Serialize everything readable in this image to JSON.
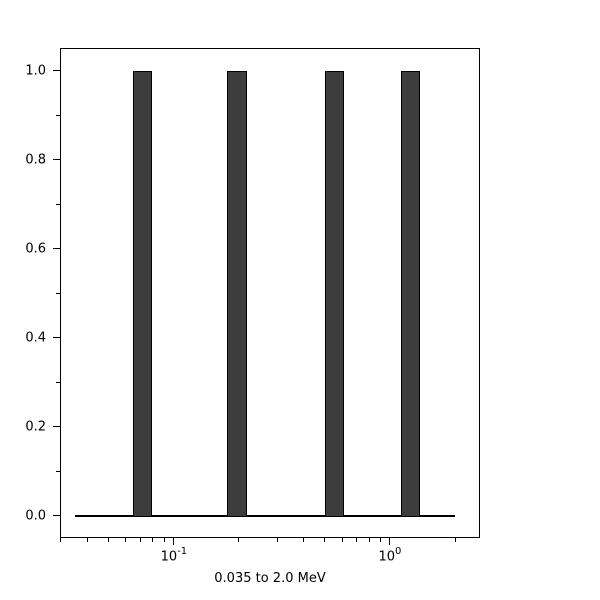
{
  "chart_data": {
    "type": "bar",
    "title": "",
    "xlabel": "0.035 to 2.0 MeV",
    "ylabel": "",
    "xscale": "log",
    "yscale": "linear",
    "xlim": [
      0.0297,
      2.61
    ],
    "ylim": [
      -0.05,
      1.051
    ],
    "grid": false,
    "legend": false,
    "background": "#ffffff",
    "axis_color": "#000000",
    "bar_fill_color": "#3d3d3d",
    "bar_edge_color": "#000000",
    "bins": [
      {
        "x_left": 0.0644,
        "x_right": 0.0789,
        "value": 1.0
      },
      {
        "x_left": 0.177,
        "x_right": 0.218,
        "value": 1.0
      },
      {
        "x_left": 0.5,
        "x_right": 0.611,
        "value": 1.0
      },
      {
        "x_left": 1.128,
        "x_right": 1.381,
        "value": 1.0
      }
    ],
    "baseline": {
      "y": 0.0,
      "x_start": 0.035,
      "x_end": 2.0
    },
    "x_axis": {
      "major_ticks": [
        {
          "value": 0.1,
          "base": "10",
          "exponent": "-1"
        },
        {
          "value": 1.0,
          "base": "10",
          "exponent": "0"
        }
      ],
      "minor_ticks": [
        0.03,
        0.04,
        0.05,
        0.06,
        0.07,
        0.08,
        0.09,
        0.2,
        0.3,
        0.4,
        0.5,
        0.6,
        0.7,
        0.8,
        0.9,
        2.0
      ]
    },
    "y_axis": {
      "major_ticks": [
        {
          "value": 0.0,
          "label": "0.0"
        },
        {
          "value": 0.2,
          "label": "0.2"
        },
        {
          "value": 0.4,
          "label": "0.4"
        },
        {
          "value": 0.6,
          "label": "0.6"
        },
        {
          "value": 0.8,
          "label": "0.8"
        },
        {
          "value": 1.0,
          "label": "1.0"
        }
      ],
      "minor_ticks": [
        0.1,
        0.3,
        0.5,
        0.7,
        0.9
      ]
    }
  }
}
